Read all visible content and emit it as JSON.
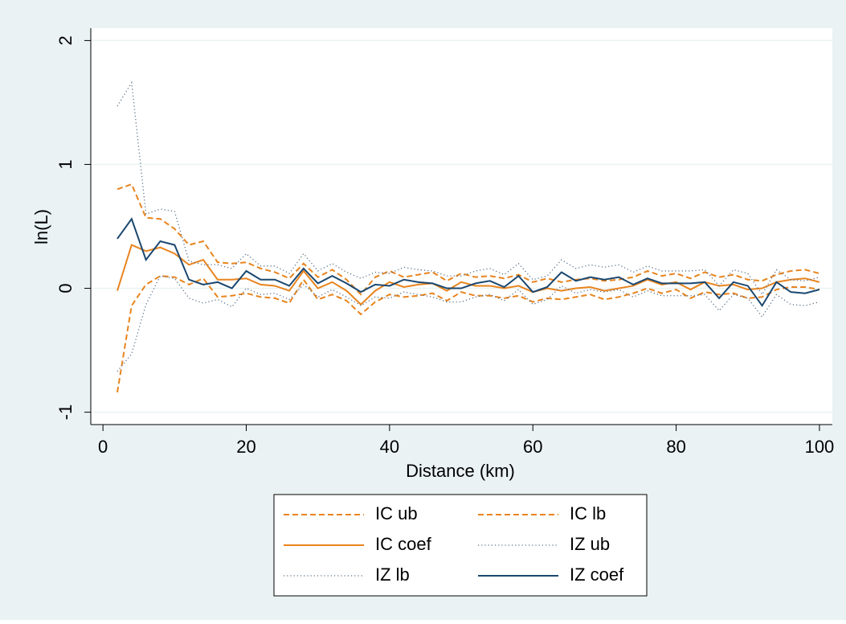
{
  "chart_data": {
    "type": "line",
    "x_label": "Distance (km)",
    "y_label": "ln(L)",
    "x": [
      2,
      4,
      6,
      8,
      10,
      12,
      14,
      16,
      18,
      20,
      22,
      24,
      26,
      28,
      30,
      32,
      34,
      36,
      38,
      40,
      42,
      44,
      46,
      48,
      50,
      52,
      54,
      56,
      58,
      60,
      62,
      64,
      66,
      68,
      70,
      72,
      74,
      76,
      78,
      80,
      82,
      84,
      86,
      88,
      90,
      92,
      94,
      96,
      98,
      100
    ],
    "xlim": [
      -1.7,
      101.8
    ],
    "xticks": [
      0,
      20,
      40,
      60,
      80,
      100
    ],
    "ylim": [
      -1.1,
      2.1
    ],
    "yticks": [
      -1,
      0,
      1,
      2
    ],
    "grid": true,
    "series": [
      {
        "name": "IC ub",
        "color": "#e8841e",
        "style": "dash",
        "values": [
          0.8,
          0.84,
          0.57,
          0.56,
          0.48,
          0.35,
          0.38,
          0.21,
          0.2,
          0.21,
          0.16,
          0.13,
          0.08,
          0.2,
          0.09,
          0.15,
          0.07,
          -0.05,
          0.09,
          0.14,
          0.09,
          0.11,
          0.13,
          0.06,
          0.12,
          0.09,
          0.1,
          0.08,
          0.11,
          0.05,
          0.08,
          0.05,
          0.07,
          0.08,
          0.06,
          0.07,
          0.09,
          0.14,
          0.1,
          0.12,
          0.08,
          0.13,
          0.09,
          0.11,
          0.07,
          0.06,
          0.11,
          0.14,
          0.15,
          0.12
        ]
      },
      {
        "name": "IC lb",
        "color": "#e8841e",
        "style": "dash",
        "values": [
          -0.84,
          -0.14,
          0.03,
          0.1,
          0.09,
          0.03,
          0.08,
          -0.07,
          -0.06,
          -0.04,
          -0.07,
          -0.08,
          -0.12,
          0.07,
          -0.09,
          -0.05,
          -0.1,
          -0.21,
          -0.11,
          -0.05,
          -0.07,
          -0.06,
          -0.04,
          -0.1,
          -0.03,
          -0.06,
          -0.06,
          -0.08,
          -0.06,
          -0.11,
          -0.08,
          -0.09,
          -0.07,
          -0.05,
          -0.09,
          -0.07,
          -0.04,
          0.0,
          -0.04,
          -0.01,
          -0.08,
          -0.03,
          -0.05,
          -0.04,
          -0.08,
          -0.07,
          -0.01,
          0.01,
          0.01,
          -0.01
        ]
      },
      {
        "name": "IC coef",
        "color": "#e8841e",
        "style": "solid",
        "values": [
          -0.02,
          0.35,
          0.3,
          0.33,
          0.28,
          0.19,
          0.23,
          0.07,
          0.07,
          0.08,
          0.03,
          0.02,
          -0.02,
          0.14,
          0.0,
          0.05,
          -0.02,
          -0.13,
          -0.02,
          0.05,
          0.01,
          0.03,
          0.04,
          -0.02,
          0.05,
          0.02,
          0.02,
          0.0,
          0.02,
          -0.03,
          0.0,
          -0.02,
          0.0,
          0.01,
          -0.02,
          0.0,
          0.02,
          0.07,
          0.03,
          0.05,
          -0.01,
          0.05,
          0.02,
          0.03,
          -0.01,
          0.0,
          0.05,
          0.07,
          0.08,
          0.05
        ]
      },
      {
        "name": "IZ ub",
        "color": "#5a7088",
        "style": "dot",
        "values": [
          1.47,
          1.66,
          0.6,
          0.64,
          0.62,
          0.22,
          0.19,
          0.19,
          0.16,
          0.28,
          0.18,
          0.18,
          0.12,
          0.28,
          0.14,
          0.2,
          0.13,
          0.08,
          0.13,
          0.12,
          0.17,
          0.15,
          0.14,
          0.1,
          0.1,
          0.14,
          0.16,
          0.11,
          0.2,
          0.07,
          0.1,
          0.23,
          0.16,
          0.19,
          0.17,
          0.19,
          0.13,
          0.18,
          0.14,
          0.14,
          0.14,
          0.15,
          0.02,
          0.15,
          0.12,
          -0.05,
          0.15,
          0.07,
          0.06,
          0.09
        ]
      },
      {
        "name": "IZ lb",
        "color": "#5a7088",
        "style": "dot",
        "values": [
          -0.67,
          -0.53,
          -0.13,
          0.1,
          0.08,
          -0.08,
          -0.12,
          -0.09,
          -0.15,
          0.0,
          -0.05,
          -0.04,
          -0.09,
          0.03,
          -0.07,
          -0.01,
          -0.07,
          -0.14,
          -0.07,
          -0.08,
          -0.03,
          -0.05,
          -0.07,
          -0.11,
          -0.11,
          -0.07,
          -0.05,
          -0.1,
          -0.01,
          -0.13,
          -0.09,
          0.02,
          -0.04,
          -0.01,
          -0.03,
          -0.01,
          -0.07,
          -0.02,
          -0.06,
          -0.06,
          -0.06,
          -0.05,
          -0.18,
          -0.05,
          -0.08,
          -0.23,
          -0.05,
          -0.13,
          -0.14,
          -0.11
        ]
      },
      {
        "name": "IZ coef",
        "color": "#1a476f",
        "style": "solid",
        "values": [
          0.4,
          0.56,
          0.23,
          0.38,
          0.35,
          0.07,
          0.03,
          0.05,
          0.0,
          0.14,
          0.07,
          0.07,
          0.02,
          0.16,
          0.04,
          0.1,
          0.04,
          -0.03,
          0.03,
          0.02,
          0.07,
          0.05,
          0.04,
          0.0,
          0.0,
          0.04,
          0.06,
          0.01,
          0.1,
          -0.03,
          0.01,
          0.13,
          0.06,
          0.09,
          0.07,
          0.09,
          0.03,
          0.08,
          0.04,
          0.04,
          0.04,
          0.05,
          -0.08,
          0.05,
          0.02,
          -0.14,
          0.05,
          -0.03,
          -0.04,
          -0.01
        ]
      }
    ]
  }
}
